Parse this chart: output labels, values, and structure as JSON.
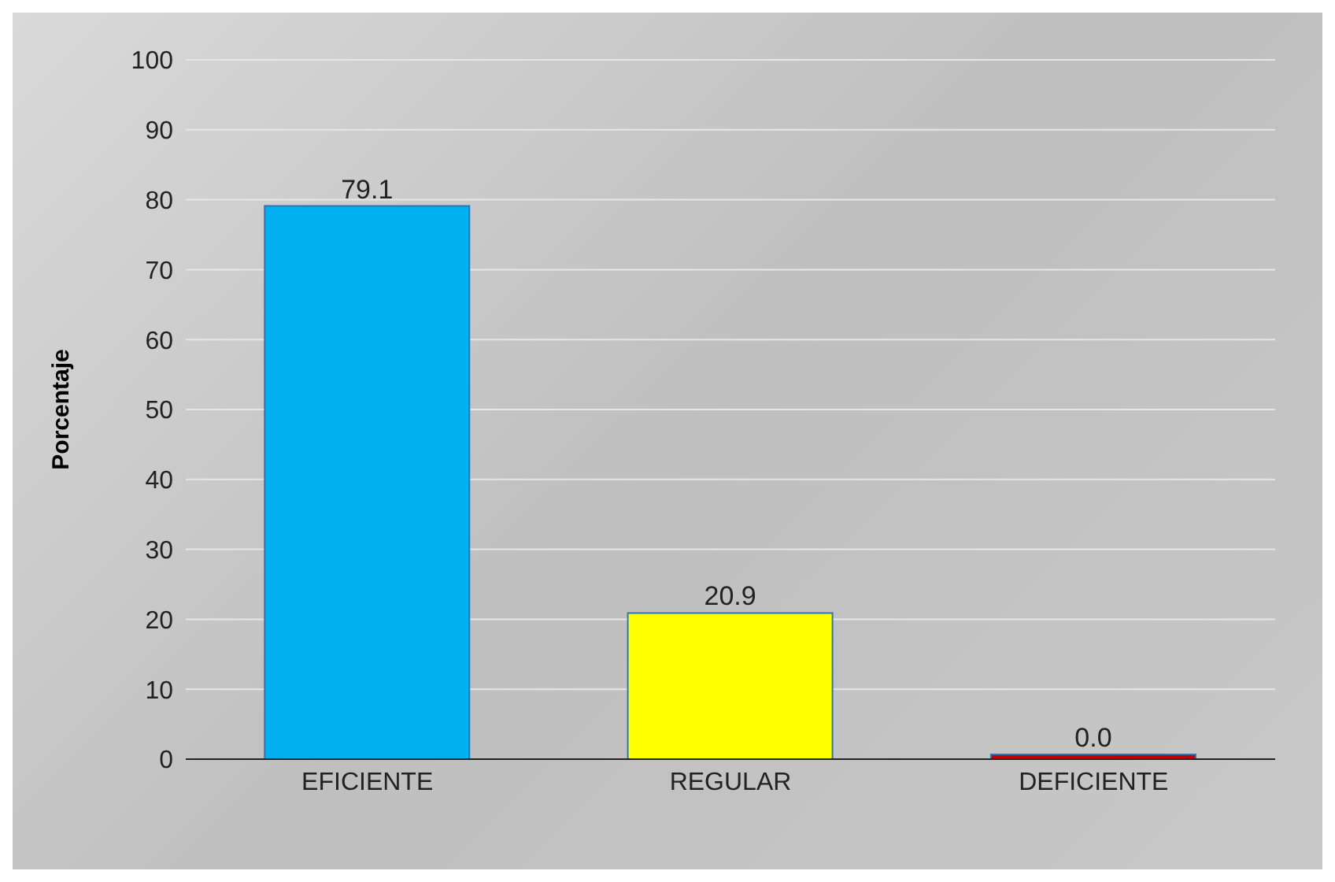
{
  "chart_data": {
    "type": "bar",
    "ylabel": "Porcentaje",
    "categories": [
      "EFICIENTE",
      "REGULAR",
      "DEFICIENTE"
    ],
    "values": [
      79.1,
      20.9,
      0.0
    ],
    "colors": [
      "#00b0f0",
      "#ffff00",
      "#c00000"
    ],
    "value_labels": [
      "79.1",
      "20.9",
      "0.0"
    ],
    "ylim": [
      0,
      100
    ],
    "yticks": [
      0,
      10,
      20,
      30,
      40,
      50,
      60,
      70,
      80,
      90,
      100
    ],
    "grid": "y"
  }
}
